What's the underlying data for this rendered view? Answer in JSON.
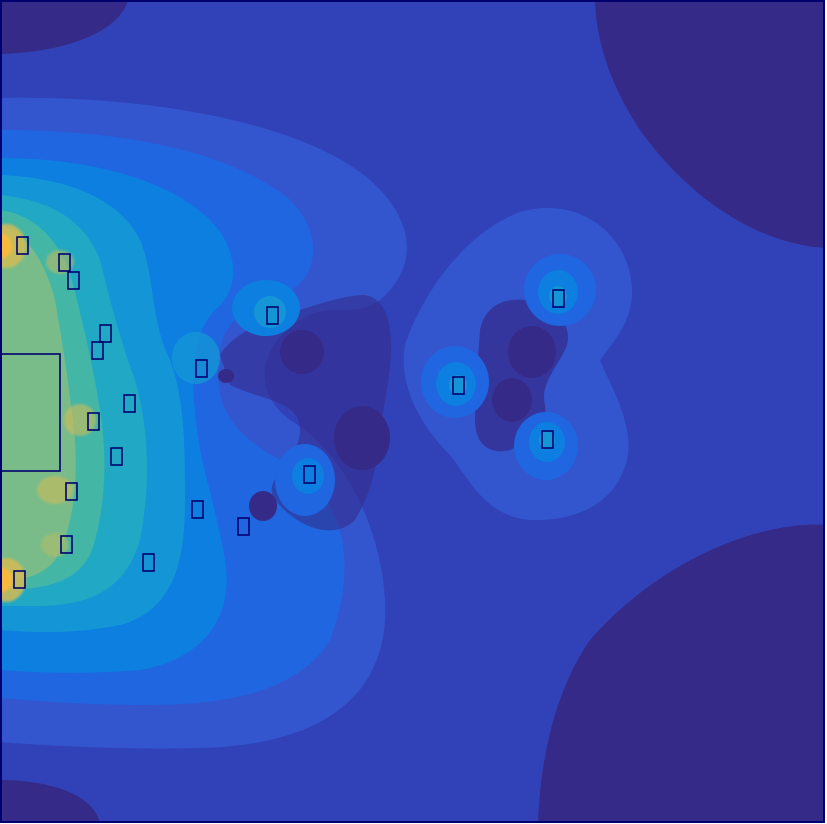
{
  "figure": {
    "type": "filled-contour-field-map",
    "colormap": "parula",
    "colors": {
      "border": "#00006e",
      "obstacle_outline": "#00006e",
      "level_0": "#352a87",
      "level_1": "#3142b8",
      "level_2": "#3356cf",
      "level_3": "#1f66e0",
      "level_4": "#0d7fe0",
      "level_5": "#1496d6",
      "level_6": "#21a8c4",
      "level_7": "#43b6a6",
      "level_8": "#79bc8a",
      "level_9": "#a8bd6c",
      "level_10": "#d4bb54",
      "level_11": "#f8ba3e"
    }
  }
}
